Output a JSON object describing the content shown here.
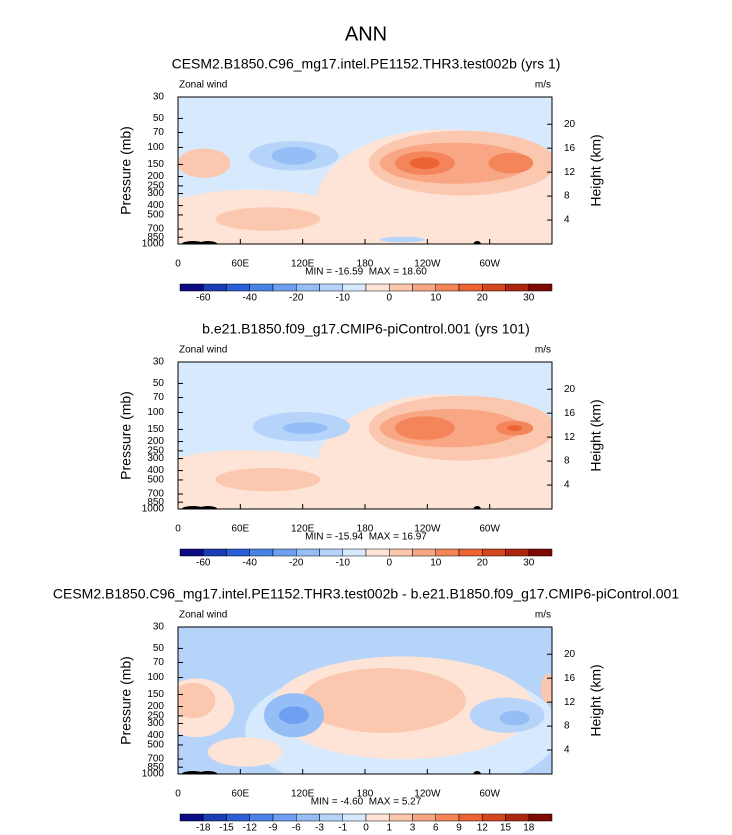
{
  "title": "ANN",
  "chart_data": [
    {
      "type": "contour",
      "title": "CESM2.B1850.C96_mg17.intel.PE1152.THR3.test002b (yrs 1)",
      "left_label": "Zonal wind",
      "right_label": "m/s",
      "ylabel": "Pressure (mb)",
      "y2label": "Height (km)",
      "ylim": [
        30,
        1000
      ],
      "log_y": true,
      "yticks": [
        30,
        50,
        70,
        100,
        150,
        200,
        250,
        300,
        400,
        500,
        700,
        850,
        1000
      ],
      "y2ticks": [
        20,
        16,
        12,
        8,
        4
      ],
      "xlim": [
        0,
        360
      ],
      "xticks": [
        0,
        {
          "value": 60,
          "label": "60E"
        },
        {
          "value": 120,
          "label": "120E"
        },
        180,
        {
          "value": 240,
          "label": "120W"
        },
        {
          "value": 300,
          "label": "60W"
        }
      ],
      "stats": "MIN = -16.59  MAX = 18.60",
      "colorbar": {
        "levels": [
          -60,
          -50,
          -40,
          -30,
          -20,
          -15,
          -10,
          -5,
          0,
          5,
          10,
          15,
          20,
          25,
          30
        ],
        "label_every": 2,
        "colors": [
          "#0b0b86",
          "#1a3cb4",
          "#2b5fd6",
          "#4a82e6",
          "#6f9ff0",
          "#95bdf6",
          "#b6d4fa",
          "#d7e9fd",
          "#fde4d6",
          "#fbc7ae",
          "#f8a683",
          "#f4855b",
          "#ec6334",
          "#d4461d",
          "#ad270e",
          "#7e0a04"
        ]
      }
    },
    {
      "type": "contour",
      "title": "b.e21.B1850.f09_g17.CMIP6-piControl.001 (yrs 101)",
      "left_label": "Zonal wind",
      "right_label": "m/s",
      "ylabel": "Pressure (mb)",
      "y2label": "Height (km)",
      "ylim": [
        30,
        1000
      ],
      "log_y": true,
      "yticks": [
        30,
        50,
        70,
        100,
        150,
        200,
        250,
        300,
        400,
        500,
        700,
        850,
        1000
      ],
      "y2ticks": [
        20,
        16,
        12,
        8,
        4
      ],
      "xlim": [
        0,
        360
      ],
      "xticks": [
        0,
        {
          "value": 60,
          "label": "60E"
        },
        {
          "value": 120,
          "label": "120E"
        },
        180,
        {
          "value": 240,
          "label": "120W"
        },
        {
          "value": 300,
          "label": "60W"
        }
      ],
      "stats": "MIN = -15.94  MAX = 16.97",
      "colorbar": {
        "levels": [
          -60,
          -50,
          -40,
          -30,
          -20,
          -15,
          -10,
          -5,
          0,
          5,
          10,
          15,
          20,
          25,
          30
        ],
        "label_every": 2,
        "colors": [
          "#0b0b86",
          "#1a3cb4",
          "#2b5fd6",
          "#4a82e6",
          "#6f9ff0",
          "#95bdf6",
          "#b6d4fa",
          "#d7e9fd",
          "#fde4d6",
          "#fbc7ae",
          "#f8a683",
          "#f4855b",
          "#ec6334",
          "#d4461d",
          "#ad270e",
          "#7e0a04"
        ]
      }
    },
    {
      "type": "contour",
      "title": "CESM2.B1850.C96_mg17.intel.PE1152.THR3.test002b - b.e21.B1850.f09_g17.CMIP6-piControl.001",
      "left_label": "Zonal wind",
      "right_label": "m/s",
      "ylabel": "Pressure (mb)",
      "y2label": "Height (km)",
      "ylim": [
        30,
        1000
      ],
      "log_y": true,
      "yticks": [
        30,
        50,
        70,
        100,
        150,
        200,
        250,
        300,
        400,
        500,
        700,
        850,
        1000
      ],
      "y2ticks": [
        20,
        16,
        12,
        8,
        4
      ],
      "xlim": [
        0,
        360
      ],
      "xticks": [
        0,
        {
          "value": 60,
          "label": "60E"
        },
        {
          "value": 120,
          "label": "120E"
        },
        180,
        {
          "value": 240,
          "label": "120W"
        },
        {
          "value": 300,
          "label": "60W"
        }
      ],
      "stats": "MIN = -4.60  MAX = 5.27",
      "colorbar": {
        "levels": [
          -18,
          -15,
          -12,
          -9,
          -6,
          -3,
          -1,
          0,
          1,
          3,
          6,
          9,
          12,
          15,
          18
        ],
        "label_every": 1,
        "colors": [
          "#0b0b86",
          "#1a3cb4",
          "#2b5fd6",
          "#4a82e6",
          "#6f9ff0",
          "#95bdf6",
          "#b6d4fa",
          "#d7e9fd",
          "#fde4d6",
          "#fbc7ae",
          "#f8a683",
          "#f4855b",
          "#ec6334",
          "#d4461d",
          "#ad270e",
          "#7e0a04"
        ]
      }
    }
  ]
}
